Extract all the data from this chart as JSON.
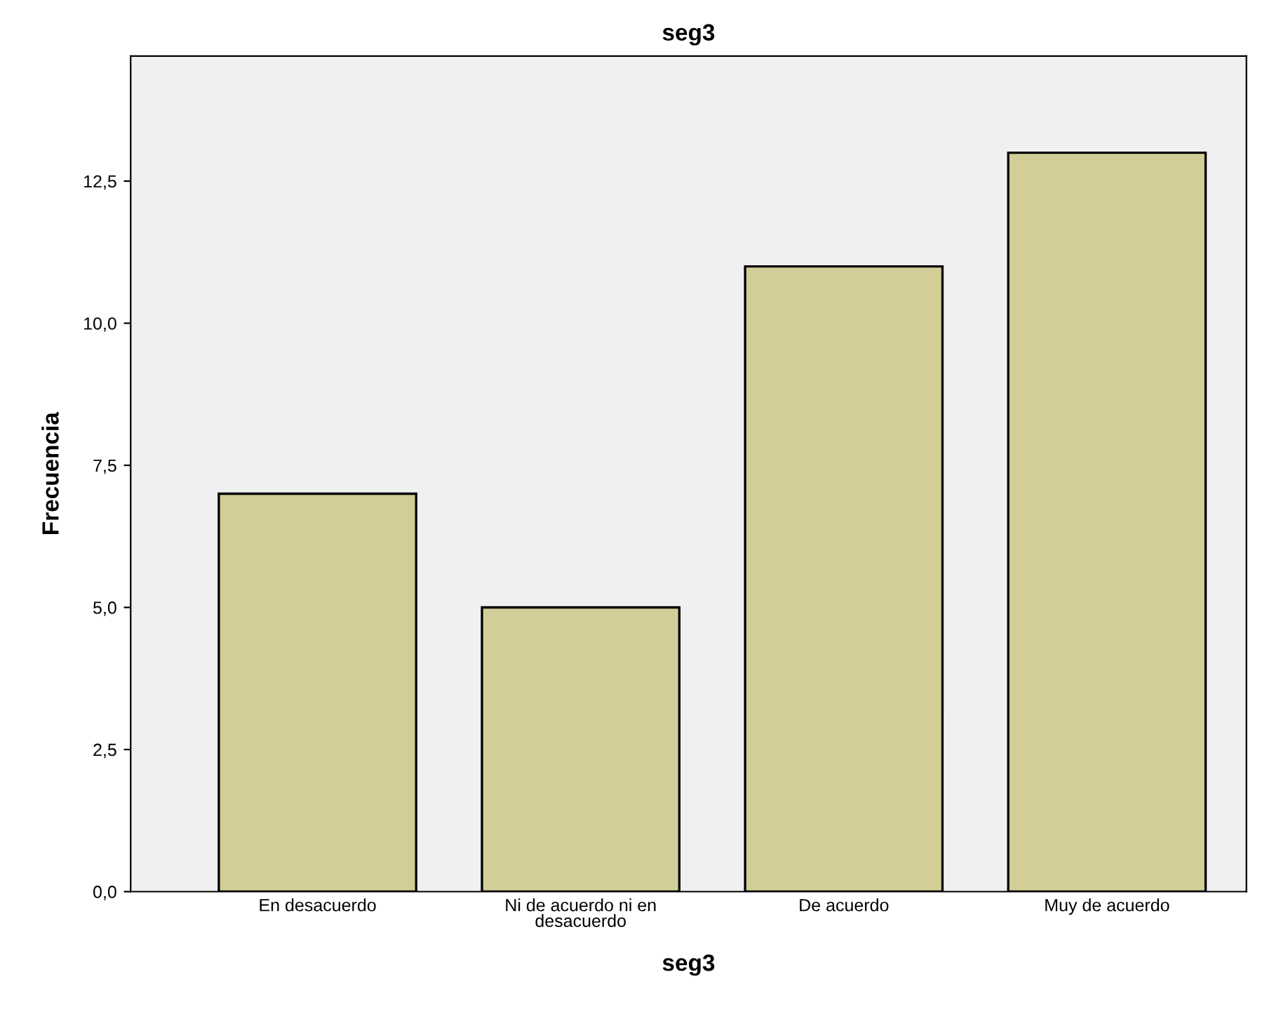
{
  "chart_data": {
    "type": "bar",
    "title": "seg3",
    "xlabel": "seg3",
    "ylabel": "Frecuencia",
    "categories": [
      "En desacuerdo",
      "Ni de acuerdo ni en\ndesacuerdo",
      "De acuerdo",
      "Muy de acuerdo"
    ],
    "values": [
      7,
      5,
      11,
      13
    ],
    "color": "#d3ce97",
    "ylim": [
      0,
      14.7
    ],
    "yticks": [
      {
        "value": 0,
        "label": "0,0"
      },
      {
        "value": 2.5,
        "label": "2,5"
      },
      {
        "value": 5,
        "label": "5,0"
      },
      {
        "value": 7.5,
        "label": "7,5"
      },
      {
        "value": 10,
        "label": "10,0"
      },
      {
        "value": 12.5,
        "label": "12,5"
      }
    ],
    "grid": false
  }
}
